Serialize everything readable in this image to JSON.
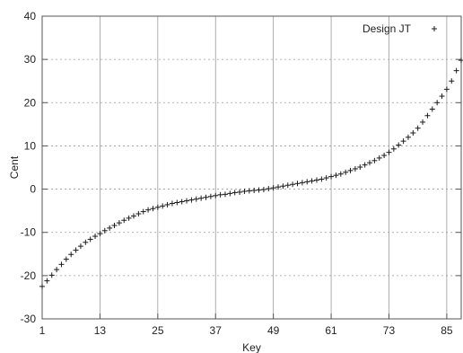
{
  "chart_data": {
    "type": "scatter",
    "xlabel": "Key",
    "ylabel": "Cent",
    "xlim": [
      1,
      88
    ],
    "ylim": [
      -30,
      40
    ],
    "xticks": [
      1,
      13,
      25,
      37,
      49,
      61,
      73,
      85
    ],
    "yticks": [
      -30,
      -20,
      -10,
      0,
      10,
      20,
      30,
      40
    ],
    "grid": true,
    "legend_position": "top-right",
    "marker": "+",
    "series": [
      {
        "name": "Design JT",
        "x": [
          1,
          2,
          3,
          4,
          5,
          6,
          7,
          8,
          9,
          10,
          11,
          12,
          13,
          14,
          15,
          16,
          17,
          18,
          19,
          20,
          21,
          22,
          23,
          24,
          25,
          26,
          27,
          28,
          29,
          30,
          31,
          32,
          33,
          34,
          35,
          36,
          37,
          38,
          39,
          40,
          41,
          42,
          43,
          44,
          45,
          46,
          47,
          48,
          49,
          50,
          51,
          52,
          53,
          54,
          55,
          56,
          57,
          58,
          59,
          60,
          61,
          62,
          63,
          64,
          65,
          66,
          67,
          68,
          69,
          70,
          71,
          72,
          73,
          74,
          75,
          76,
          77,
          78,
          79,
          80,
          81,
          82,
          83,
          84,
          85,
          86,
          87,
          88
        ],
        "values": [
          -22.5,
          -21.2,
          -19.9,
          -18.6,
          -17.4,
          -16.2,
          -15.1,
          -14.1,
          -13.2,
          -12.3,
          -11.6,
          -10.9,
          -10.3,
          -9.6,
          -9,
          -8.4,
          -7.8,
          -7.2,
          -6.7,
          -6.2,
          -5.7,
          -5.2,
          -4.8,
          -4.5,
          -4.2,
          -3.9,
          -3.6,
          -3.3,
          -3.1,
          -2.9,
          -2.7,
          -2.5,
          -2.3,
          -2.1,
          -1.9,
          -1.7,
          -1.5,
          -1.3,
          -1.2,
          -1,
          -0.8,
          -0.7,
          -0.5,
          -0.4,
          -0.3,
          -0.2,
          -0.1,
          0.1,
          0.3,
          0.5,
          0.7,
          0.9,
          1.1,
          1.3,
          1.5,
          1.7,
          1.9,
          2.1,
          2.3,
          2.6,
          2.9,
          3.2,
          3.5,
          3.9,
          4.3,
          4.7,
          5.1,
          5.6,
          6.1,
          6.6,
          7.2,
          7.8,
          8.5,
          9.3,
          10.2,
          11.1,
          12,
          13,
          14.1,
          15.5,
          17,
          18.5,
          20,
          21.5,
          23.1,
          25,
          27.4,
          29.8
        ]
      }
    ]
  }
}
